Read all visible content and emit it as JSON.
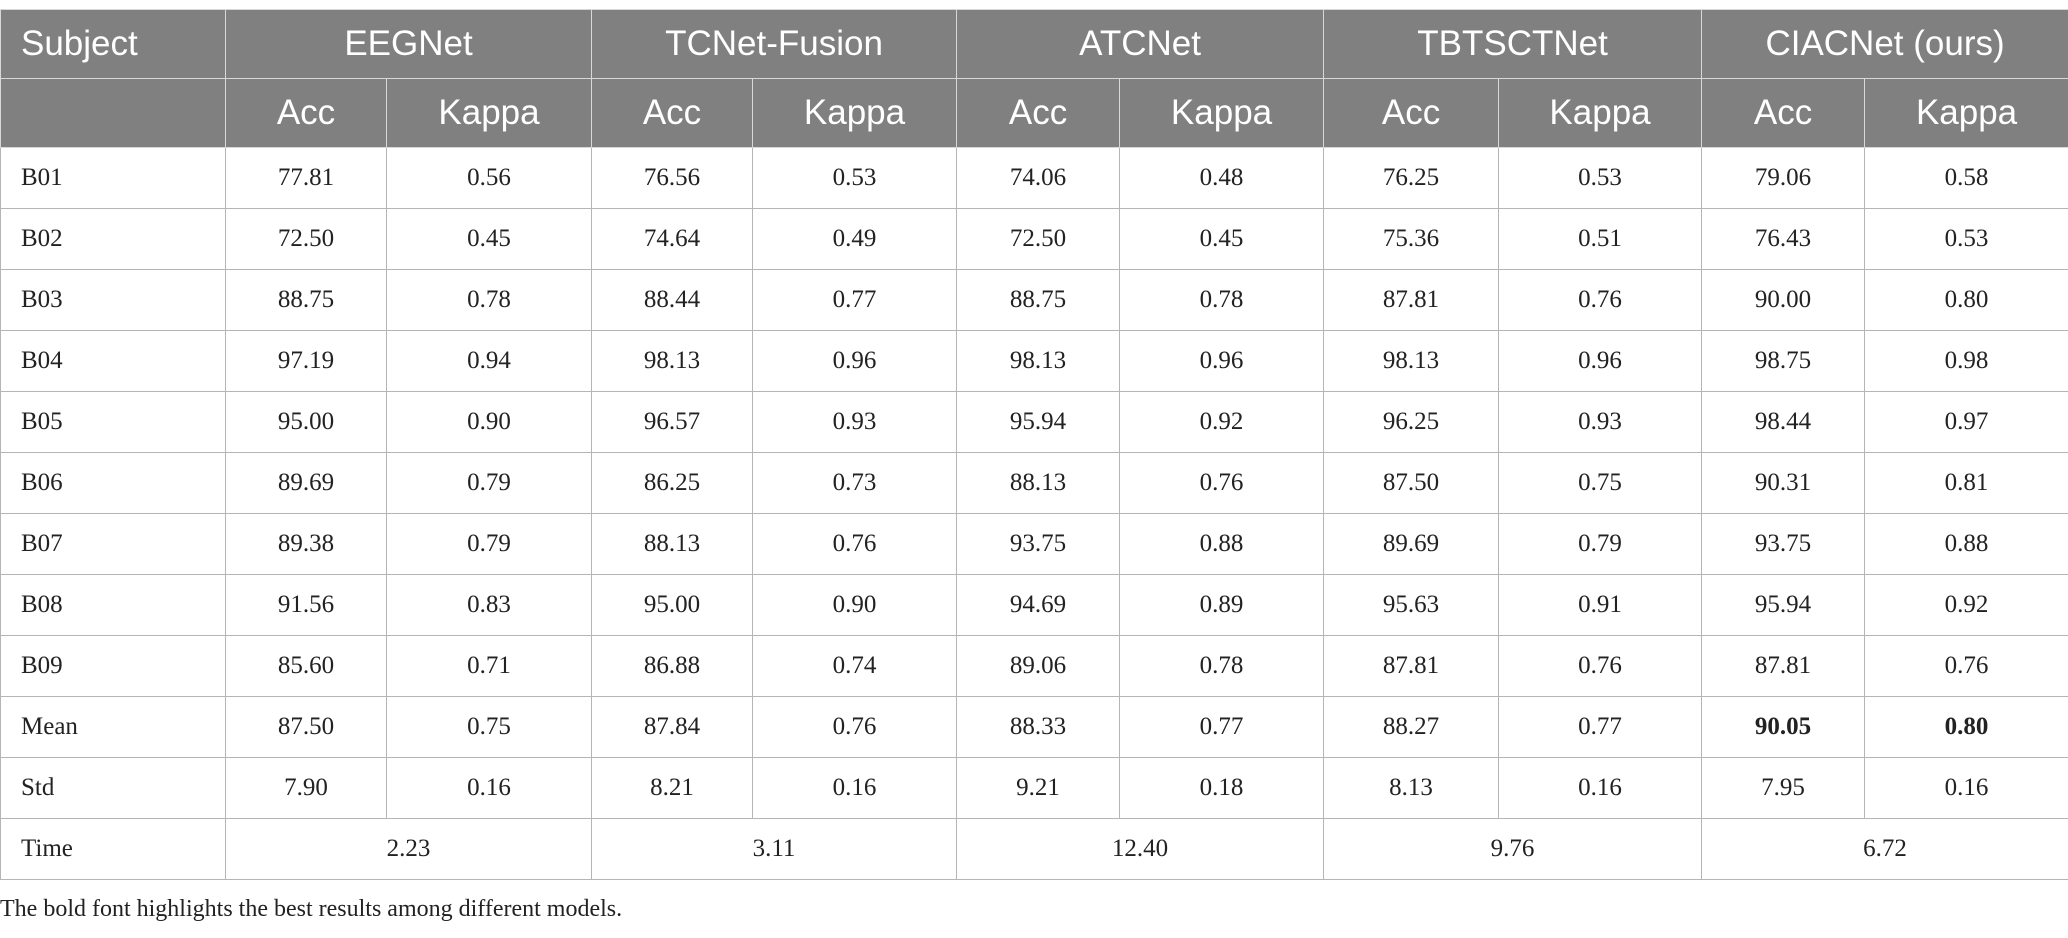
{
  "table": {
    "header": [
      "Subject",
      "EEGNet",
      "TCNet-Fusion",
      "ATCNet",
      "TBTSCTNet",
      "CIACNet (ours)"
    ],
    "subheader": [
      "Acc",
      "Kappa"
    ],
    "rows": [
      [
        "B01",
        "77.81",
        "0.56",
        "76.56",
        "0.53",
        "74.06",
        "0.48",
        "76.25",
        "0.53",
        "79.06",
        "0.58"
      ],
      [
        "B02",
        "72.50",
        "0.45",
        "74.64",
        "0.49",
        "72.50",
        "0.45",
        "75.36",
        "0.51",
        "76.43",
        "0.53"
      ],
      [
        "B03",
        "88.75",
        "0.78",
        "88.44",
        "0.77",
        "88.75",
        "0.78",
        "87.81",
        "0.76",
        "90.00",
        "0.80"
      ],
      [
        "B04",
        "97.19",
        "0.94",
        "98.13",
        "0.96",
        "98.13",
        "0.96",
        "98.13",
        "0.96",
        "98.75",
        "0.98"
      ],
      [
        "B05",
        "95.00",
        "0.90",
        "96.57",
        "0.93",
        "95.94",
        "0.92",
        "96.25",
        "0.93",
        "98.44",
        "0.97"
      ],
      [
        "B06",
        "89.69",
        "0.79",
        "86.25",
        "0.73",
        "88.13",
        "0.76",
        "87.50",
        "0.75",
        "90.31",
        "0.81"
      ],
      [
        "B07",
        "89.38",
        "0.79",
        "88.13",
        "0.76",
        "93.75",
        "0.88",
        "89.69",
        "0.79",
        "93.75",
        "0.88"
      ],
      [
        "B08",
        "91.56",
        "0.83",
        "95.00",
        "0.90",
        "94.69",
        "0.89",
        "95.63",
        "0.91",
        "95.94",
        "0.92"
      ],
      [
        "B09",
        "85.60",
        "0.71",
        "86.88",
        "0.74",
        "89.06",
        "0.78",
        "87.81",
        "0.76",
        "87.81",
        "0.76"
      ],
      [
        "Mean",
        "87.50",
        "0.75",
        "87.84",
        "0.76",
        "88.33",
        "0.77",
        "88.27",
        "0.77",
        "90.05",
        "0.80"
      ],
      [
        "Std",
        "7.90",
        "0.16",
        "8.21",
        "0.16",
        "9.21",
        "0.18",
        "8.13",
        "0.16",
        "7.95",
        "0.16"
      ],
      [
        "Time",
        "2.23",
        "3.11",
        "12.40",
        "9.76",
        "6.72"
      ]
    ]
  },
  "footnote": "The bold font highlights the best results among different models."
}
